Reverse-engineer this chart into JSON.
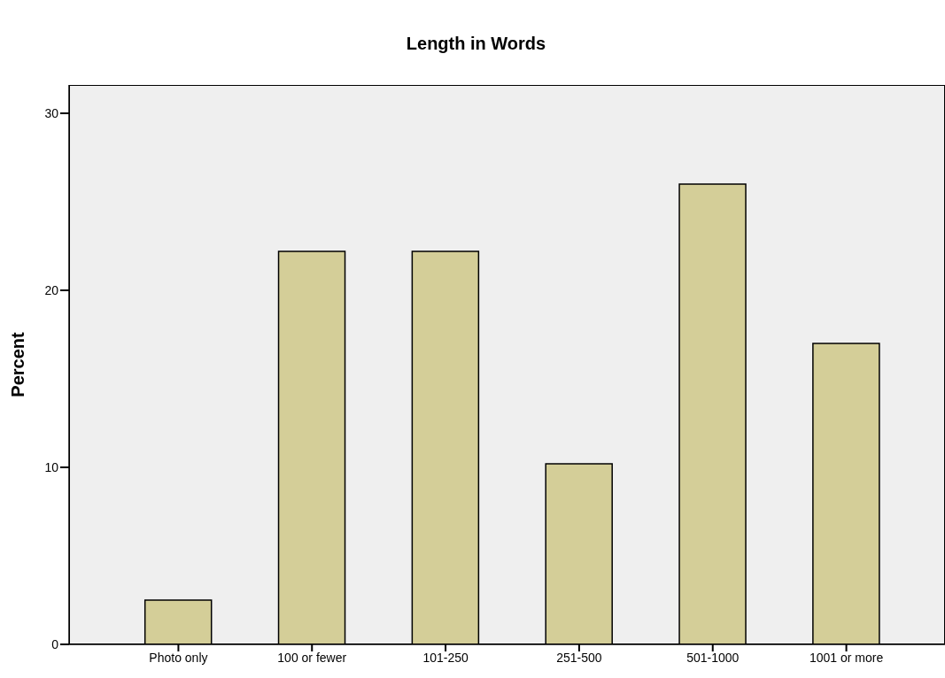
{
  "chart_data": {
    "type": "bar",
    "title": "Length in Words",
    "ylabel": "Percent",
    "categories": [
      "Photo only",
      "100 or fewer",
      "101-250",
      "251-500",
      "501-1000",
      "1001 or more"
    ],
    "values": [
      2.5,
      22.2,
      22.2,
      10.2,
      26.0,
      17.0
    ],
    "color": "#d4ce98",
    "ylim": [
      0,
      31.6
    ],
    "yticks": [
      0,
      10,
      20,
      30
    ],
    "grid": false,
    "legend": false
  }
}
